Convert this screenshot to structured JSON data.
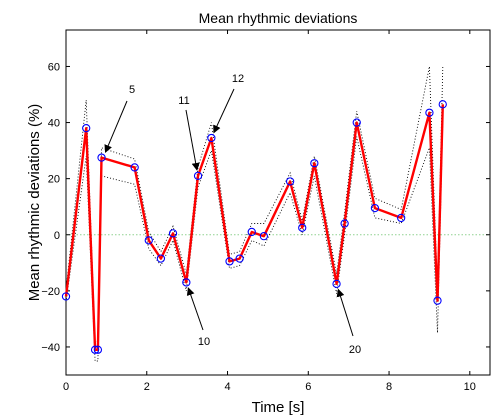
{
  "chart_data": {
    "type": "line",
    "title": "Mean rhythmic deviations",
    "xlabel": "Time [s]",
    "ylabel": "Mean rhythmic deviations (%)",
    "xlim": [
      0,
      10.5
    ],
    "ylim": [
      -50,
      73
    ],
    "xticks": [
      0,
      2,
      4,
      6,
      8,
      10
    ],
    "yticks": [
      -40,
      -20,
      0,
      20,
      40,
      60
    ],
    "xtick_labels": [
      "0",
      "2",
      "4",
      "6",
      "8",
      "10"
    ],
    "ytick_labels": [
      "−40",
      "−20",
      "0",
      "20",
      "40",
      "60"
    ],
    "grid": false,
    "legend": "none",
    "colors": {
      "mean_line": "#ff0000",
      "markers": "#0000ff",
      "bounds": "#000000",
      "zero_line": "#8fd18f"
    },
    "series": [
      {
        "x": [
          0.0,
          0.5,
          0.72,
          0.79,
          0.88,
          1.7,
          2.05,
          2.35,
          2.65,
          2.98,
          3.27,
          3.6,
          4.05,
          4.3,
          4.6,
          4.9,
          5.55,
          5.85,
          6.15,
          6.7,
          6.9,
          7.2,
          7.65,
          8.3,
          9.0,
          9.2,
          9.33
        ],
        "y": [
          -22,
          38,
          -41,
          -41,
          27.5,
          24,
          -2,
          -8.5,
          0.5,
          -17,
          21,
          34.5,
          -9.5,
          -8.5,
          1,
          -0.5,
          19,
          2.5,
          25.5,
          -17.5,
          4,
          40,
          9.5,
          6,
          43.5,
          -23.5,
          46.5
        ],
        "upper": [
          -20,
          48,
          -38,
          -38,
          31,
          27,
          1,
          -6,
          3,
          -14,
          24,
          40,
          -7,
          -6,
          4,
          4,
          22,
          5,
          28,
          -14,
          8,
          44,
          13,
          9,
          60,
          -20,
          60
        ],
        "lower": [
          -24,
          28,
          -45,
          -45,
          21,
          18,
          -5,
          -11,
          -2,
          -20,
          17,
          30,
          -12,
          -11,
          -2,
          -4,
          15,
          0,
          21,
          -21,
          0,
          35,
          6,
          4,
          31,
          -35,
          40
        ]
      }
    ],
    "annotations": [
      {
        "text": "5",
        "x": 0.92,
        "y": 27.5
      },
      {
        "text": "10",
        "x": 2.98,
        "y": -17
      },
      {
        "text": "11",
        "x": 3.27,
        "y": 21
      },
      {
        "text": "12",
        "x": 3.6,
        "y": 34.5
      },
      {
        "text": "20",
        "x": 6.7,
        "y": -17.5
      }
    ]
  }
}
